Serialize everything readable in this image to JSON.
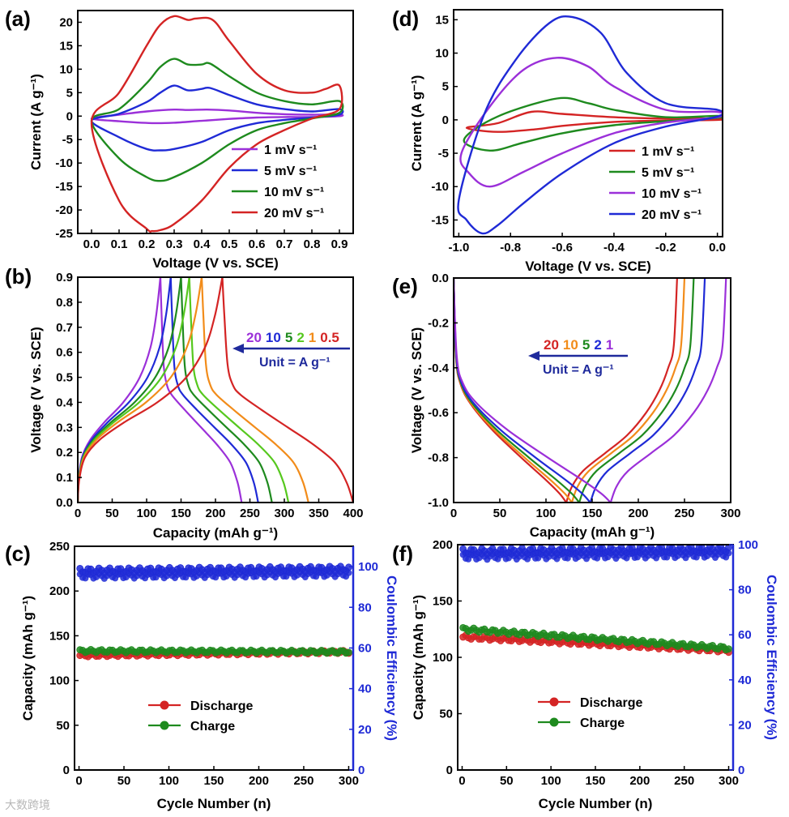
{
  "figure": {
    "watermark": "大数跨境"
  },
  "chart_data": [
    {
      "id": "a",
      "label": "(a)",
      "type": "line",
      "xlabel": "Voltage (V vs. SCE)",
      "ylabel": "Current (A g⁻¹)",
      "xlim": [
        -0.05,
        0.95
      ],
      "ylim": [
        -25,
        22.5
      ],
      "xticks": [
        0.0,
        0.1,
        0.2,
        0.3,
        0.4,
        0.5,
        0.6,
        0.7,
        0.8,
        0.9
      ],
      "xtick_labels": [
        "0.0",
        "0.1",
        "0.2",
        "0.3",
        "0.4",
        "0.5",
        "0.6",
        "0.7",
        "0.8",
        "0.9"
      ],
      "yticks": [
        -25,
        -20,
        -15,
        -10,
        -5,
        0,
        5,
        10,
        15,
        20
      ],
      "ytick_labels": [
        "-25",
        "-20",
        "-15",
        "-10",
        "-5",
        "0",
        "5",
        "10",
        "15",
        "20"
      ],
      "legend": {
        "position": "center-right"
      },
      "series": [
        {
          "name": "1 mV s⁻¹",
          "color": "#9b30d9",
          "closed": true,
          "x": [
            0.0,
            0.1,
            0.2,
            0.3,
            0.35,
            0.42,
            0.5,
            0.6,
            0.7,
            0.8,
            0.9,
            0.9,
            0.8,
            0.7,
            0.6,
            0.5,
            0.4,
            0.3,
            0.22,
            0.1,
            0.0
          ],
          "y": [
            -0.5,
            0.3,
            1.0,
            1.4,
            1.3,
            1.4,
            1.2,
            0.7,
            0.4,
            0.3,
            0.3,
            0.0,
            -0.2,
            -0.2,
            -0.3,
            -0.6,
            -1.0,
            -1.4,
            -1.5,
            -1.1,
            -0.5
          ]
        },
        {
          "name": "5 mV s⁻¹",
          "color": "#1f2ad6",
          "closed": true,
          "x": [
            0.0,
            0.1,
            0.2,
            0.25,
            0.3,
            0.35,
            0.4,
            0.43,
            0.5,
            0.6,
            0.7,
            0.8,
            0.9,
            0.9,
            0.8,
            0.7,
            0.6,
            0.5,
            0.4,
            0.3,
            0.25,
            0.2,
            0.1,
            0.0
          ],
          "y": [
            -1.0,
            0.5,
            3.0,
            5.0,
            6.5,
            5.5,
            5.8,
            6.0,
            4.5,
            2.5,
            1.5,
            1.0,
            1.5,
            0.3,
            -0.3,
            -0.8,
            -1.5,
            -3.0,
            -5.5,
            -7.0,
            -7.3,
            -7.0,
            -4.5,
            -1.8
          ]
        },
        {
          "name": "10 mV s⁻¹",
          "color": "#1e8a1e",
          "closed": true,
          "x": [
            0.0,
            0.1,
            0.2,
            0.25,
            0.3,
            0.35,
            0.4,
            0.43,
            0.5,
            0.6,
            0.7,
            0.8,
            0.9,
            0.9,
            0.8,
            0.7,
            0.6,
            0.5,
            0.4,
            0.3,
            0.25,
            0.2,
            0.1,
            0.0
          ],
          "y": [
            -1.0,
            1.5,
            7.0,
            10.5,
            12.2,
            11.0,
            11.0,
            11.2,
            8.5,
            5.0,
            3.2,
            2.5,
            3.2,
            0.7,
            -0.5,
            -1.5,
            -3.0,
            -6.0,
            -10.0,
            -13.0,
            -13.8,
            -13.0,
            -9.0,
            -5.0
          ]
        },
        {
          "name": "20 mV s⁻¹",
          "color": "#d42424",
          "closed": true,
          "x": [
            0.0,
            0.1,
            0.2,
            0.25,
            0.3,
            0.35,
            0.38,
            0.44,
            0.5,
            0.6,
            0.7,
            0.8,
            0.85,
            0.9,
            0.9,
            0.8,
            0.7,
            0.6,
            0.5,
            0.4,
            0.3,
            0.25,
            0.22,
            0.2,
            0.1,
            0.0
          ],
          "y": [
            -1.5,
            5.0,
            15.0,
            19.5,
            21.3,
            20.5,
            20.8,
            20.5,
            16.0,
            9.0,
            5.5,
            5.0,
            5.8,
            6.5,
            1.5,
            -0.5,
            -3.0,
            -6.0,
            -11.0,
            -18.0,
            -23.0,
            -24.3,
            -24.5,
            -24.0,
            -18.0,
            -11.0
          ]
        }
      ]
    },
    {
      "id": "b",
      "label": "(b)",
      "type": "line",
      "xlabel": "Capacity (mAh g⁻¹)",
      "ylabel": "Voltage (V vs. SCE)",
      "xlim": [
        0,
        400
      ],
      "ylim": [
        0.0,
        0.9
      ],
      "xticks": [
        0,
        50,
        100,
        150,
        200,
        250,
        300,
        350,
        400
      ],
      "xtick_labels": [
        "0",
        "50",
        "100",
        "150",
        "200",
        "250",
        "300",
        "350",
        "400"
      ],
      "yticks": [
        0.0,
        0.1,
        0.2,
        0.3,
        0.4,
        0.5,
        0.6,
        0.7,
        0.8,
        0.9
      ],
      "ytick_labels": [
        "0.0",
        "0.1",
        "0.2",
        "0.3",
        "0.4",
        "0.5",
        "0.6",
        "0.7",
        "0.8",
        "0.9"
      ],
      "annotation": {
        "rates": [
          {
            "text": "20",
            "color": "#9b30d9"
          },
          {
            "text": "10",
            "color": "#1f2ad6"
          },
          {
            "text": "5",
            "color": "#1e8a1e"
          },
          {
            "text": "2",
            "color": "#56c81e"
          },
          {
            "text": "1",
            "color": "#f28c1a"
          },
          {
            "text": "0.5",
            "color": "#d42424"
          }
        ],
        "unit": "Unit = A g⁻¹"
      },
      "series": [
        {
          "name": "20",
          "color": "#9b30d9",
          "charge_end": 120,
          "discharge_end": 238
        },
        {
          "name": "10",
          "color": "#1f2ad6",
          "charge_end": 135,
          "discharge_end": 262
        },
        {
          "name": "5",
          "color": "#1e8a1e",
          "charge_end": 150,
          "discharge_end": 282
        },
        {
          "name": "2",
          "color": "#56c81e",
          "charge_end": 162,
          "discharge_end": 306
        },
        {
          "name": "1",
          "color": "#f28c1a",
          "charge_end": 180,
          "discharge_end": 335
        },
        {
          "name": "0.5",
          "color": "#d42424",
          "charge_end": 210,
          "discharge_end": 400
        }
      ]
    },
    {
      "id": "c",
      "label": "(c)",
      "type": "scatter",
      "xlabel": "Cycle Number (n)",
      "ylabel": "Capacity (mAh g⁻¹)",
      "y2label": "Coulombic Efficiency (%)",
      "xlim": [
        -5,
        305
      ],
      "ylim": [
        0,
        250
      ],
      "y2lim": [
        0,
        110
      ],
      "xticks": [
        0,
        50,
        100,
        150,
        200,
        250,
        300
      ],
      "xtick_labels": [
        "0",
        "50",
        "100",
        "150",
        "200",
        "250",
        "300"
      ],
      "yticks": [
        0,
        50,
        100,
        150,
        200,
        250
      ],
      "ytick_labels": [
        "0",
        "50",
        "100",
        "150",
        "200",
        "250"
      ],
      "y2ticks": [
        0,
        20,
        40,
        60,
        80,
        100
      ],
      "y2tick_labels": [
        "0",
        "20",
        "40",
        "60",
        "80",
        "100"
      ],
      "legend": {
        "position": "bottom-center"
      },
      "series": [
        {
          "name": "Discharge",
          "color": "#d42424",
          "axis": "left",
          "cycles": 300,
          "start": 128,
          "end": 132,
          "point_count": 100
        },
        {
          "name": "Charge",
          "color": "#1e8a1e",
          "axis": "left",
          "cycles": 300,
          "start": 133,
          "end": 132,
          "point_count": 100
        },
        {
          "name": "Coulombic Efficiency",
          "color": "#1f2ad6",
          "axis": "right",
          "cycles": 300,
          "start": 98,
          "end": 99,
          "point_count": 100
        }
      ]
    },
    {
      "id": "d",
      "label": "(d)",
      "type": "line",
      "xlabel": "Voltage (V vs. SCE)",
      "ylabel": "Current (A g⁻¹)",
      "xlim": [
        -1.02,
        0.02
      ],
      "ylim": [
        -17.5,
        16.5
      ],
      "xticks": [
        -1.0,
        -0.8,
        -0.6,
        -0.4,
        -0.2,
        0.0
      ],
      "xtick_labels": [
        "-1.0",
        "-0.8",
        "-0.6",
        "-0.4",
        "-0.2",
        "0.0"
      ],
      "yticks": [
        -15,
        -10,
        -5,
        0,
        5,
        10,
        15
      ],
      "ytick_labels": [
        "-15",
        "-10",
        "-5",
        "0",
        "5",
        "10",
        "15"
      ],
      "legend": {
        "position": "center-right"
      },
      "series": [
        {
          "name": "1 mV s⁻¹",
          "color": "#d42424",
          "closed": true,
          "x": [
            -0.97,
            -0.85,
            -0.72,
            -0.6,
            -0.4,
            -0.2,
            0.0,
            0.0,
            -0.2,
            -0.4,
            -0.6,
            -0.7,
            -0.85,
            -0.97
          ],
          "y": [
            -1.2,
            -0.5,
            1.2,
            0.9,
            0.4,
            0.2,
            0.2,
            0.0,
            -0.1,
            -0.3,
            -0.9,
            -1.4,
            -1.8,
            -1.2
          ]
        },
        {
          "name": "5 mV s⁻¹",
          "color": "#1e8a1e",
          "closed": true,
          "x": [
            -0.98,
            -0.85,
            -0.62,
            -0.5,
            -0.4,
            -0.2,
            0.0,
            0.0,
            -0.2,
            -0.4,
            -0.6,
            -0.75,
            -0.88,
            -0.98
          ],
          "y": [
            -3.0,
            0.5,
            3.2,
            2.5,
            1.5,
            0.4,
            0.6,
            0.3,
            -0.2,
            -0.8,
            -2.0,
            -3.4,
            -4.6,
            -3.0
          ]
        },
        {
          "name": "10 mV s⁻¹",
          "color": "#9b30d9",
          "closed": true,
          "x": [
            -0.99,
            -0.88,
            -0.75,
            -0.62,
            -0.5,
            -0.4,
            -0.2,
            0.0,
            0.0,
            -0.2,
            -0.4,
            -0.6,
            -0.75,
            -0.88,
            -0.96,
            -0.99
          ],
          "y": [
            -5.0,
            2.0,
            7.5,
            9.3,
            8.0,
            5.0,
            1.5,
            1.2,
            0.4,
            -0.4,
            -2.0,
            -5.0,
            -7.8,
            -10.0,
            -8.0,
            -5.0
          ]
        },
        {
          "name": "20 mV s⁻¹",
          "color": "#1f2ad6",
          "closed": true,
          "x": [
            -1.0,
            -0.9,
            -0.78,
            -0.65,
            -0.56,
            -0.45,
            -0.35,
            -0.2,
            0.0,
            0.0,
            -0.2,
            -0.4,
            -0.6,
            -0.75,
            -0.85,
            -0.91,
            -0.97,
            -1.0
          ],
          "y": [
            -12.0,
            1.0,
            9.0,
            14.5,
            15.4,
            13.0,
            7.0,
            2.5,
            1.5,
            0.5,
            -1.0,
            -3.5,
            -8.0,
            -12.5,
            -15.8,
            -17.0,
            -15.0,
            -12.0
          ]
        }
      ]
    },
    {
      "id": "e",
      "label": "(e)",
      "type": "line",
      "xlabel": "Capacity (mAh g⁻¹)",
      "ylabel": "Voltage (V vs. SCE)",
      "xlim": [
        0,
        300
      ],
      "ylim": [
        -1.0,
        0.0
      ],
      "xticks": [
        0,
        50,
        100,
        150,
        200,
        250,
        300
      ],
      "xtick_labels": [
        "0",
        "50",
        "100",
        "150",
        "200",
        "250",
        "300"
      ],
      "yticks": [
        -1.0,
        -0.8,
        -0.6,
        -0.4,
        -0.2,
        0.0
      ],
      "ytick_labels": [
        "-1.0",
        "-0.8",
        "-0.6",
        "-0.4",
        "-0.2",
        "0.0"
      ],
      "annotation": {
        "rates": [
          {
            "text": "20",
            "color": "#d42424"
          },
          {
            "text": "10",
            "color": "#f28c1a"
          },
          {
            "text": "5",
            "color": "#1e8a1e"
          },
          {
            "text": "2",
            "color": "#1f2ad6"
          },
          {
            "text": "1",
            "color": "#9b30d9"
          }
        ],
        "unit": "Unit = A g⁻¹"
      },
      "series": [
        {
          "name": "20",
          "color": "#d42424",
          "discharge_end": 122,
          "charge_end": 242
        },
        {
          "name": "10",
          "color": "#f28c1a",
          "discharge_end": 128,
          "charge_end": 250
        },
        {
          "name": "5",
          "color": "#1e8a1e",
          "discharge_end": 136,
          "charge_end": 260
        },
        {
          "name": "2",
          "color": "#1f2ad6",
          "discharge_end": 148,
          "charge_end": 272
        },
        {
          "name": "1",
          "color": "#9b30d9",
          "discharge_end": 170,
          "charge_end": 295
        }
      ]
    },
    {
      "id": "f",
      "label": "(f)",
      "type": "scatter",
      "xlabel": "Cycle Number (n)",
      "ylabel": "Capacity (mAh g⁻¹)",
      "y2label": "Coulombic Efficiency (%)",
      "xlim": [
        -5,
        305
      ],
      "ylim": [
        0,
        200
      ],
      "y2lim": [
        0,
        100
      ],
      "xticks": [
        0,
        50,
        100,
        150,
        200,
        250,
        300
      ],
      "xtick_labels": [
        "0",
        "50",
        "100",
        "150",
        "200",
        "250",
        "300"
      ],
      "yticks": [
        0,
        50,
        100,
        150,
        200
      ],
      "ytick_labels": [
        "0",
        "50",
        "100",
        "150",
        "200"
      ],
      "y2ticks": [
        0,
        20,
        40,
        60,
        80,
        100
      ],
      "y2tick_labels": [
        "0",
        "20",
        "40",
        "60",
        "80",
        "100"
      ],
      "legend": {
        "position": "bottom-center"
      },
      "series": [
        {
          "name": "Discharge",
          "color": "#d42424",
          "axis": "left",
          "cycles": 300,
          "start": 118,
          "end": 106,
          "point_count": 100
        },
        {
          "name": "Charge",
          "color": "#1e8a1e",
          "axis": "left",
          "cycles": 300,
          "start": 125,
          "end": 108,
          "point_count": 100
        },
        {
          "name": "Coulombic Efficiency",
          "color": "#1f2ad6",
          "axis": "right",
          "cycles": 300,
          "start": 97,
          "end": 98,
          "point_count": 100
        }
      ]
    }
  ]
}
